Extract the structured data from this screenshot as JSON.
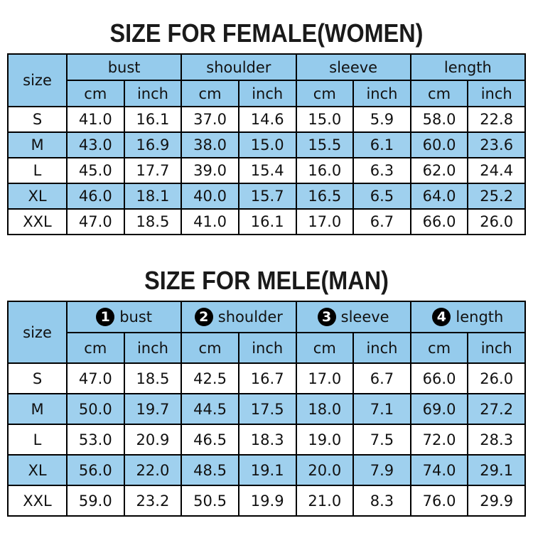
{
  "colors": {
    "header_blue": "#95cbec",
    "row_blue": "#9fd0ee",
    "row_white": "#ffffff",
    "border_black": "#000000",
    "badge_bg": "#000000",
    "badge_text": "#ffffff"
  },
  "chart_data": [
    {
      "type": "table",
      "title": "SIZE FOR FEMALE(WOMEN)",
      "size_header": "size",
      "groups": [
        {
          "label": "bust"
        },
        {
          "label": "shoulder"
        },
        {
          "label": "sleeve"
        },
        {
          "label": "length"
        }
      ],
      "unit_headers": [
        "cm",
        "inch"
      ],
      "rows": [
        {
          "size": "S",
          "values": [
            "41.0",
            "16.1",
            "37.0",
            "14.6",
            "15.0",
            "5.9",
            "58.0",
            "22.8"
          ]
        },
        {
          "size": "M",
          "values": [
            "43.0",
            "16.9",
            "38.0",
            "15.0",
            "15.5",
            "6.1",
            "60.0",
            "23.6"
          ]
        },
        {
          "size": "L",
          "values": [
            "45.0",
            "17.7",
            "39.0",
            "15.4",
            "16.0",
            "6.3",
            "62.0",
            "24.4"
          ]
        },
        {
          "size": "XL",
          "values": [
            "46.0",
            "18.1",
            "40.0",
            "15.7",
            "16.5",
            "6.5",
            "64.0",
            "25.2"
          ]
        },
        {
          "size": "XXL",
          "values": [
            "47.0",
            "18.5",
            "41.0",
            "16.1",
            "17.0",
            "6.7",
            "66.0",
            "26.0"
          ]
        }
      ]
    },
    {
      "type": "table",
      "title": "SIZE FOR MELE(MAN)",
      "size_header": "size",
      "groups": [
        {
          "badge": "1",
          "label": "bust"
        },
        {
          "badge": "2",
          "label": "shoulder"
        },
        {
          "badge": "3",
          "label": "sleeve"
        },
        {
          "badge": "4",
          "label": "length"
        }
      ],
      "unit_headers": [
        "cm",
        "inch"
      ],
      "rows": [
        {
          "size": "S",
          "values": [
            "47.0",
            "18.5",
            "42.5",
            "16.7",
            "17.0",
            "6.7",
            "66.0",
            "26.0"
          ]
        },
        {
          "size": "M",
          "values": [
            "50.0",
            "19.7",
            "44.5",
            "17.5",
            "18.0",
            "7.1",
            "69.0",
            "27.2"
          ]
        },
        {
          "size": "L",
          "values": [
            "53.0",
            "20.9",
            "46.5",
            "18.3",
            "19.0",
            "7.5",
            "72.0",
            "28.3"
          ]
        },
        {
          "size": "XL",
          "values": [
            "56.0",
            "22.0",
            "48.5",
            "19.1",
            "20.0",
            "7.9",
            "74.0",
            "29.1"
          ]
        },
        {
          "size": "XXL",
          "values": [
            "59.0",
            "23.2",
            "50.5",
            "19.9",
            "21.0",
            "8.3",
            "76.0",
            "29.9"
          ]
        }
      ]
    }
  ],
  "female_table_title": "SIZE FOR FEMALE(WOMEN)",
  "male_table_title": "SIZE FOR MELE(MAN)"
}
